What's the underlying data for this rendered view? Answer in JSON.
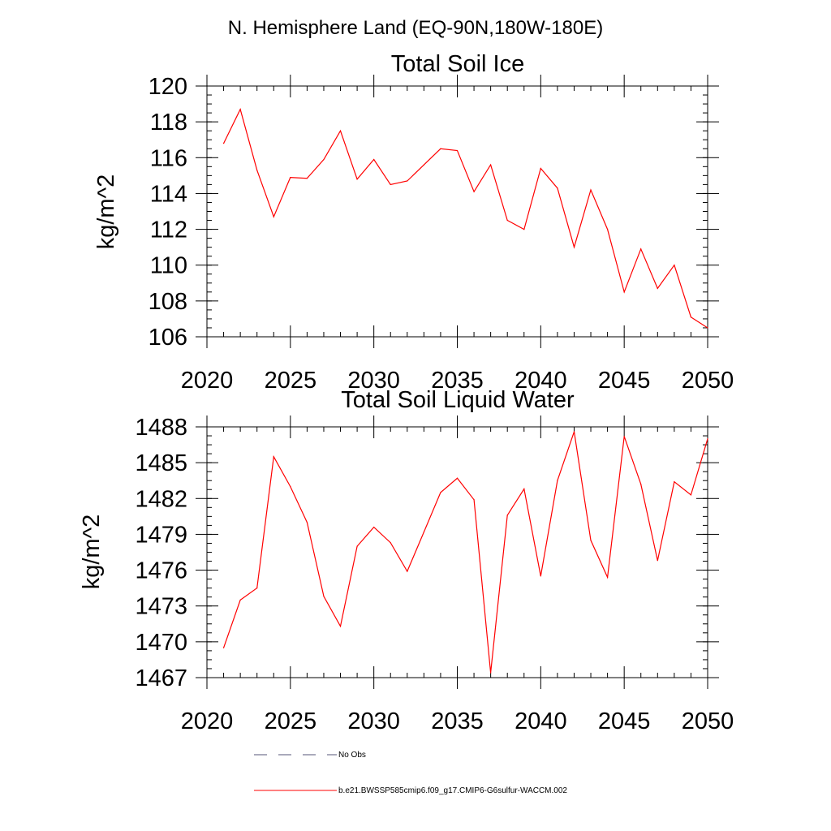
{
  "figure": {
    "title": "N. Hemisphere Land (EQ-90N,180W-180E)"
  },
  "legend": [
    {
      "label": "No Obs",
      "style": "dashed",
      "color": "#555577"
    },
    {
      "label": "b.e21.BWSSP585cmip6.f09_g17.CMIP6-G6sulfur-WACCM.002",
      "style": "solid",
      "color": "#ff0000"
    }
  ],
  "chart_data": [
    {
      "type": "line",
      "title": "Total Soil Ice",
      "xlabel": "",
      "ylabel": "kg/m^2",
      "xlim": [
        2020,
        2050
      ],
      "ylim": [
        106,
        120
      ],
      "x_ticks": [
        2020,
        2025,
        2030,
        2035,
        2040,
        2045,
        2050
      ],
      "y_ticks": [
        106,
        108,
        110,
        112,
        114,
        116,
        118,
        120
      ],
      "x_minor_step": 1,
      "y_minor_step": 0.5,
      "grid": false,
      "series": [
        {
          "color": "#ff0000",
          "x": [
            2021,
            2022,
            2023,
            2024,
            2025,
            2026,
            2027,
            2028,
            2029,
            2030,
            2031,
            2032,
            2033,
            2034,
            2035,
            2036,
            2037,
            2038,
            2039,
            2040,
            2041,
            2042,
            2043,
            2044,
            2045,
            2046,
            2047,
            2048,
            2049,
            2050
          ],
          "values": [
            116.8,
            118.7,
            115.3,
            112.7,
            114.9,
            114.85,
            115.9,
            117.5,
            114.8,
            115.9,
            114.5,
            114.7,
            115.6,
            116.5,
            116.4,
            114.1,
            115.6,
            112.5,
            112.0,
            115.4,
            114.3,
            111.0,
            114.2,
            112.0,
            108.5,
            110.9,
            108.7,
            110.0,
            107.1,
            106.5
          ]
        }
      ]
    },
    {
      "type": "line",
      "title": "Total Soil Liquid Water",
      "xlabel": "",
      "ylabel": "kg/m^2",
      "xlim": [
        2020,
        2050
      ],
      "ylim": [
        1467,
        1488
      ],
      "x_ticks": [
        2020,
        2025,
        2030,
        2035,
        2040,
        2045,
        2050
      ],
      "y_ticks": [
        1467,
        1470,
        1473,
        1476,
        1479,
        1482,
        1485,
        1488
      ],
      "x_minor_step": 1,
      "y_minor_step": 0.75,
      "grid": false,
      "series": [
        {
          "color": "#ff0000",
          "x": [
            2021,
            2022,
            2023,
            2024,
            2025,
            2026,
            2027,
            2028,
            2029,
            2030,
            2031,
            2032,
            2033,
            2034,
            2035,
            2036,
            2037,
            2038,
            2039,
            2040,
            2041,
            2042,
            2043,
            2044,
            2045,
            2046,
            2047,
            2048,
            2049,
            2050
          ],
          "values": [
            1469.5,
            1473.5,
            1474.5,
            1485.5,
            1483.0,
            1480.0,
            1473.8,
            1471.3,
            1478.0,
            1479.6,
            1478.3,
            1475.9,
            1479.2,
            1482.5,
            1483.7,
            1481.9,
            1467.4,
            1480.6,
            1482.8,
            1475.5,
            1483.5,
            1487.6,
            1478.5,
            1475.4,
            1487.2,
            1483.2,
            1476.8,
            1483.4,
            1482.3,
            1487.0
          ]
        }
      ]
    }
  ]
}
